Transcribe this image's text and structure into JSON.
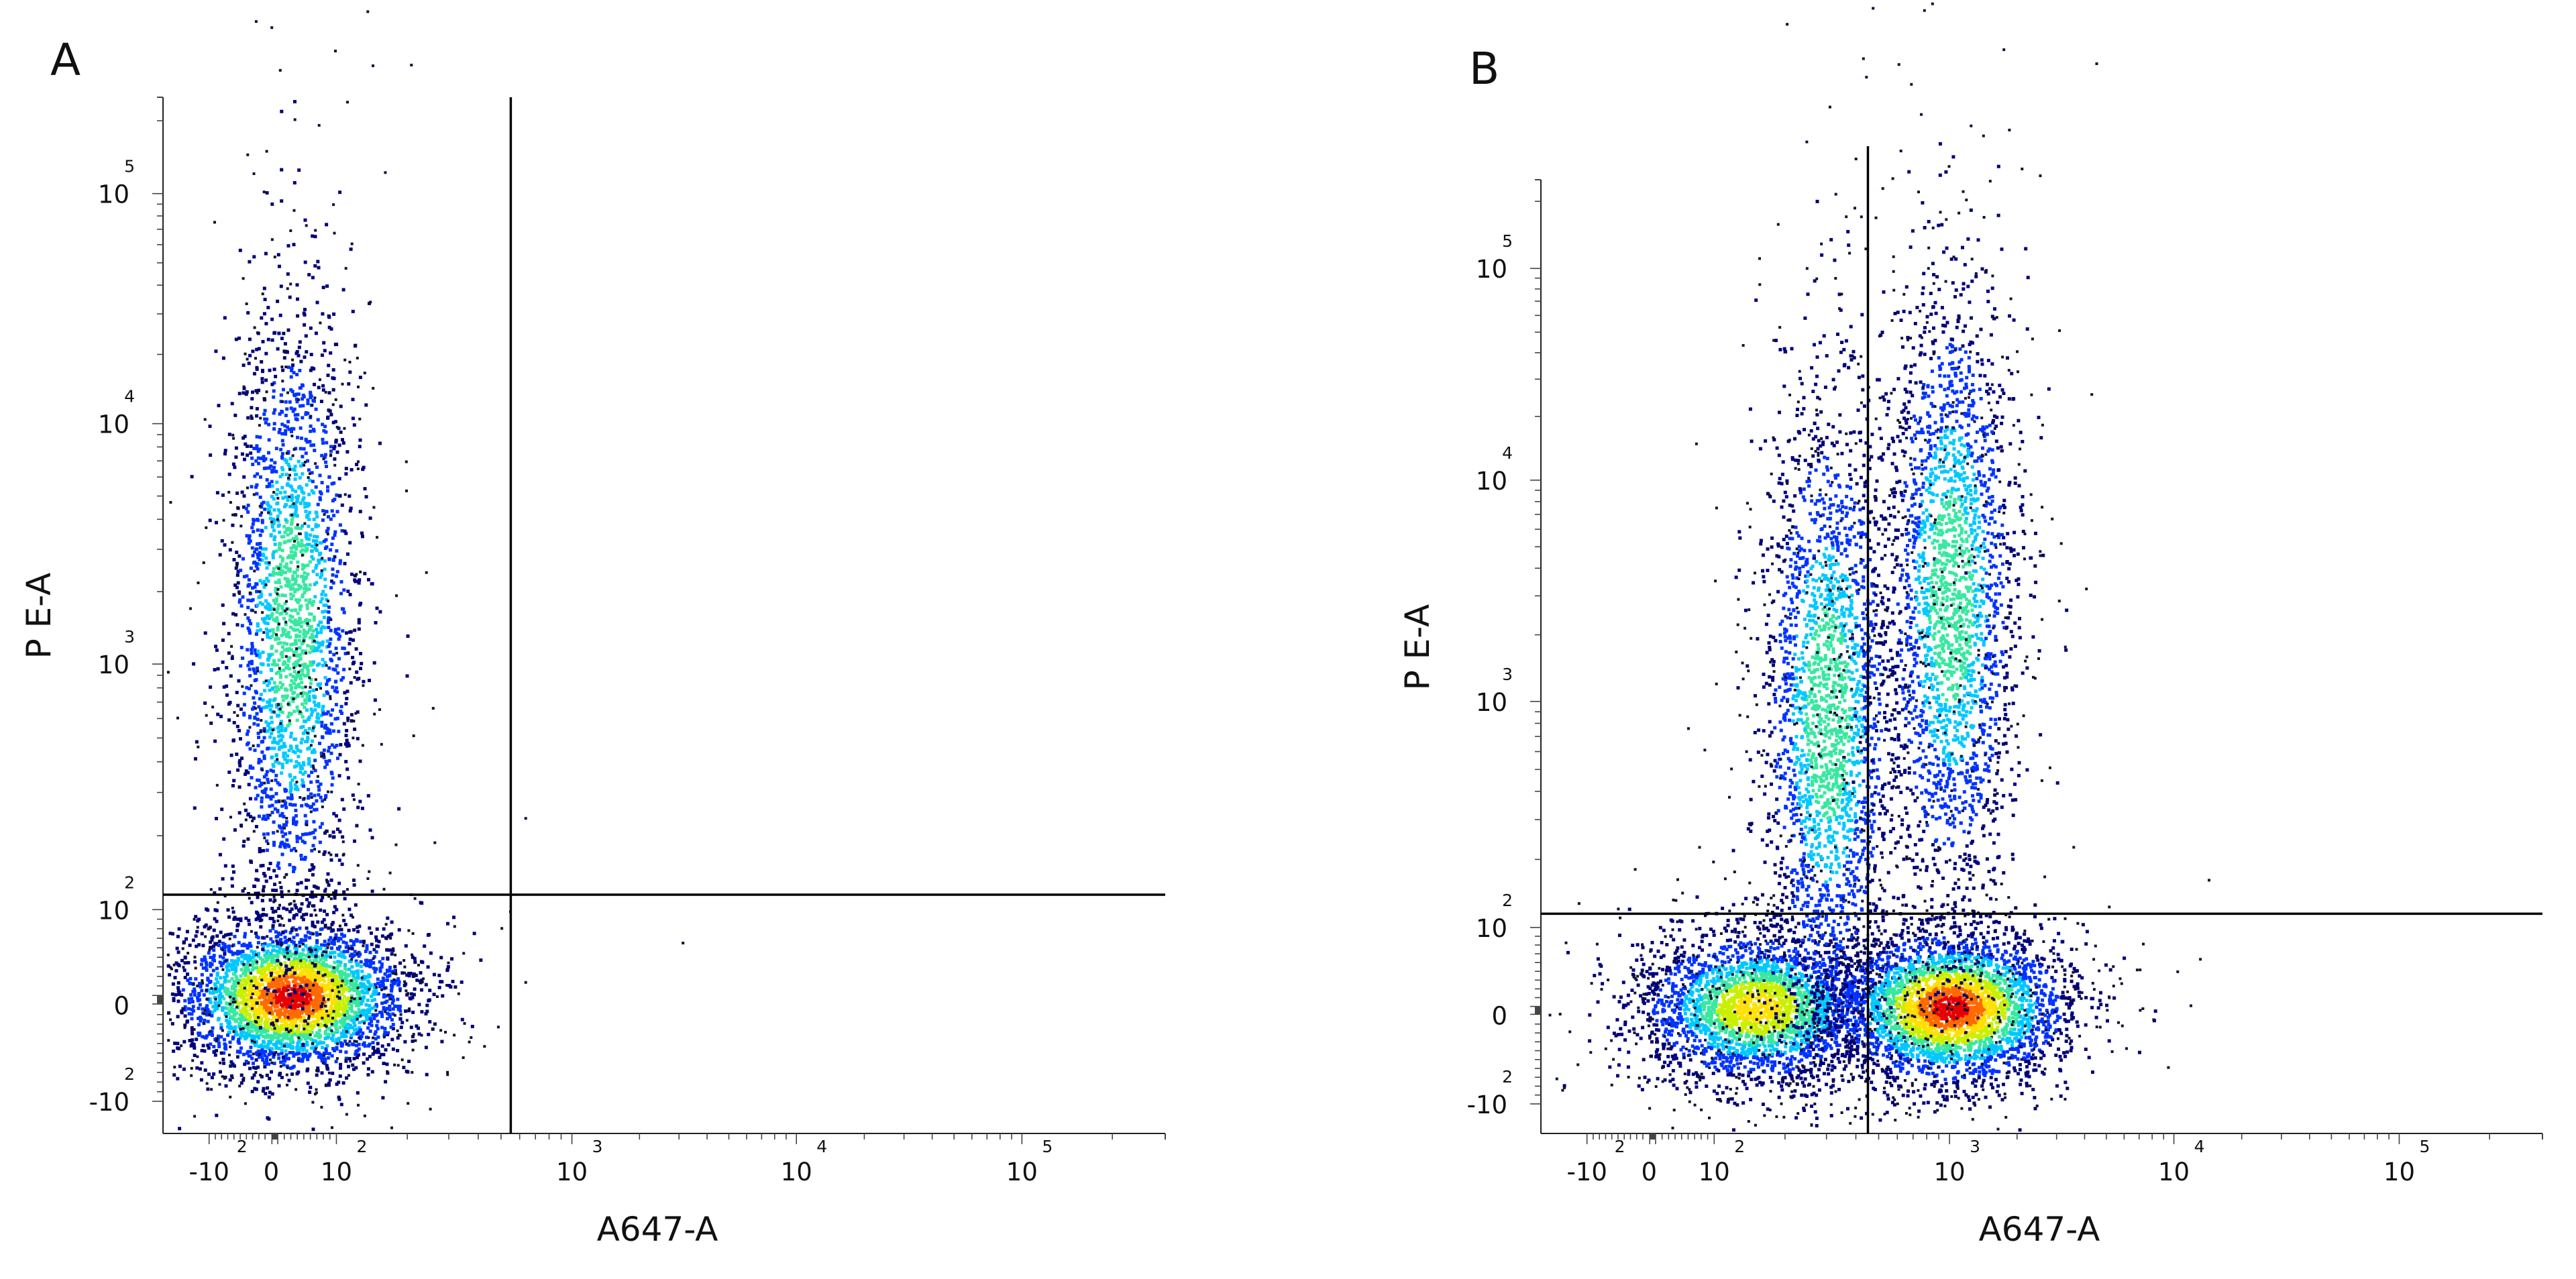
{
  "chart_data": [
    {
      "panel": "A",
      "type": "scatter",
      "subtype": "flow-cytometry-density-dot-plot",
      "title": "",
      "xlabel": "A647-A",
      "ylabel": "P E-A",
      "x_scale": "biexponential",
      "y_scale": "biexponential",
      "xlim": [
        -10,
        100000
      ],
      "ylim": [
        -10,
        100000
      ],
      "x_ticks": [
        {
          "base": "-10",
          "exp": "2",
          "value": -100
        },
        {
          "base": "0",
          "exp": "",
          "value": 0
        },
        {
          "base": "10",
          "exp": "2",
          "value": 100
        },
        {
          "base": "10",
          "exp": "3",
          "value": 1000
        },
        {
          "base": "10",
          "exp": "4",
          "value": 10000
        },
        {
          "base": "10",
          "exp": "5",
          "value": 100000
        }
      ],
      "y_ticks": [
        {
          "base": "-10",
          "exp": "2",
          "value": -100
        },
        {
          "base": "0",
          "exp": "",
          "value": 0
        },
        {
          "base": "10",
          "exp": "2",
          "value": 100
        },
        {
          "base": "10",
          "exp": "3",
          "value": 1000
        },
        {
          "base": "10",
          "exp": "4",
          "value": 10000
        },
        {
          "base": "10",
          "exp": "5",
          "value": 100000
        }
      ],
      "quadrant_gate": {
        "x": 550,
        "y": 115
      },
      "populations": [
        {
          "x_center": 30,
          "y_center": 10,
          "density": "high",
          "description_color": "red"
        },
        {
          "x_center": 30,
          "y_center": 1500,
          "density": "medium",
          "description_color": "cyan"
        }
      ],
      "color_scale": [
        "#00007a",
        "#0033ff",
        "#00c8ff",
        "#38e8a0",
        "#c8f000",
        "#ffe000",
        "#ff6a00",
        "#e60000"
      ]
    },
    {
      "panel": "B",
      "type": "scatter",
      "subtype": "flow-cytometry-density-dot-plot",
      "title": "",
      "xlabel": "A647-A",
      "ylabel": "P E-A",
      "x_scale": "biexponential",
      "y_scale": "biexponential",
      "xlim": [
        -10,
        100000
      ],
      "ylim": [
        -10,
        100000
      ],
      "x_ticks": [
        {
          "base": "-10",
          "exp": "2",
          "value": -100
        },
        {
          "base": "0",
          "exp": "",
          "value": 0
        },
        {
          "base": "10",
          "exp": "2",
          "value": 100
        },
        {
          "base": "10",
          "exp": "3",
          "value": 1000
        },
        {
          "base": "10",
          "exp": "4",
          "value": 10000
        },
        {
          "base": "10",
          "exp": "5",
          "value": 100000
        }
      ],
      "y_ticks": [
        {
          "base": "-10",
          "exp": "2",
          "value": -100
        },
        {
          "base": "0",
          "exp": "",
          "value": 0
        },
        {
          "base": "10",
          "exp": "2",
          "value": 100
        },
        {
          "base": "10",
          "exp": "3",
          "value": 1000
        },
        {
          "base": "10",
          "exp": "4",
          "value": 10000
        },
        {
          "base": "10",
          "exp": "5",
          "value": 100000
        }
      ],
      "quadrant_gate": {
        "x": 450,
        "y": 115
      },
      "populations": [
        {
          "x_center": 150,
          "y_center": 10,
          "density": "medium",
          "description_color": "green"
        },
        {
          "x_center": 1000,
          "y_center": 10,
          "density": "high",
          "description_color": "red"
        },
        {
          "x_center": 300,
          "y_center": 900,
          "density": "medium",
          "description_color": "cyan"
        },
        {
          "x_center": 1000,
          "y_center": 3000,
          "density": "medium",
          "description_color": "cyan"
        }
      ],
      "color_scale": [
        "#00007a",
        "#0033ff",
        "#00c8ff",
        "#38e8a0",
        "#c8f000",
        "#ffe000",
        "#ff6a00",
        "#e60000"
      ]
    }
  ]
}
